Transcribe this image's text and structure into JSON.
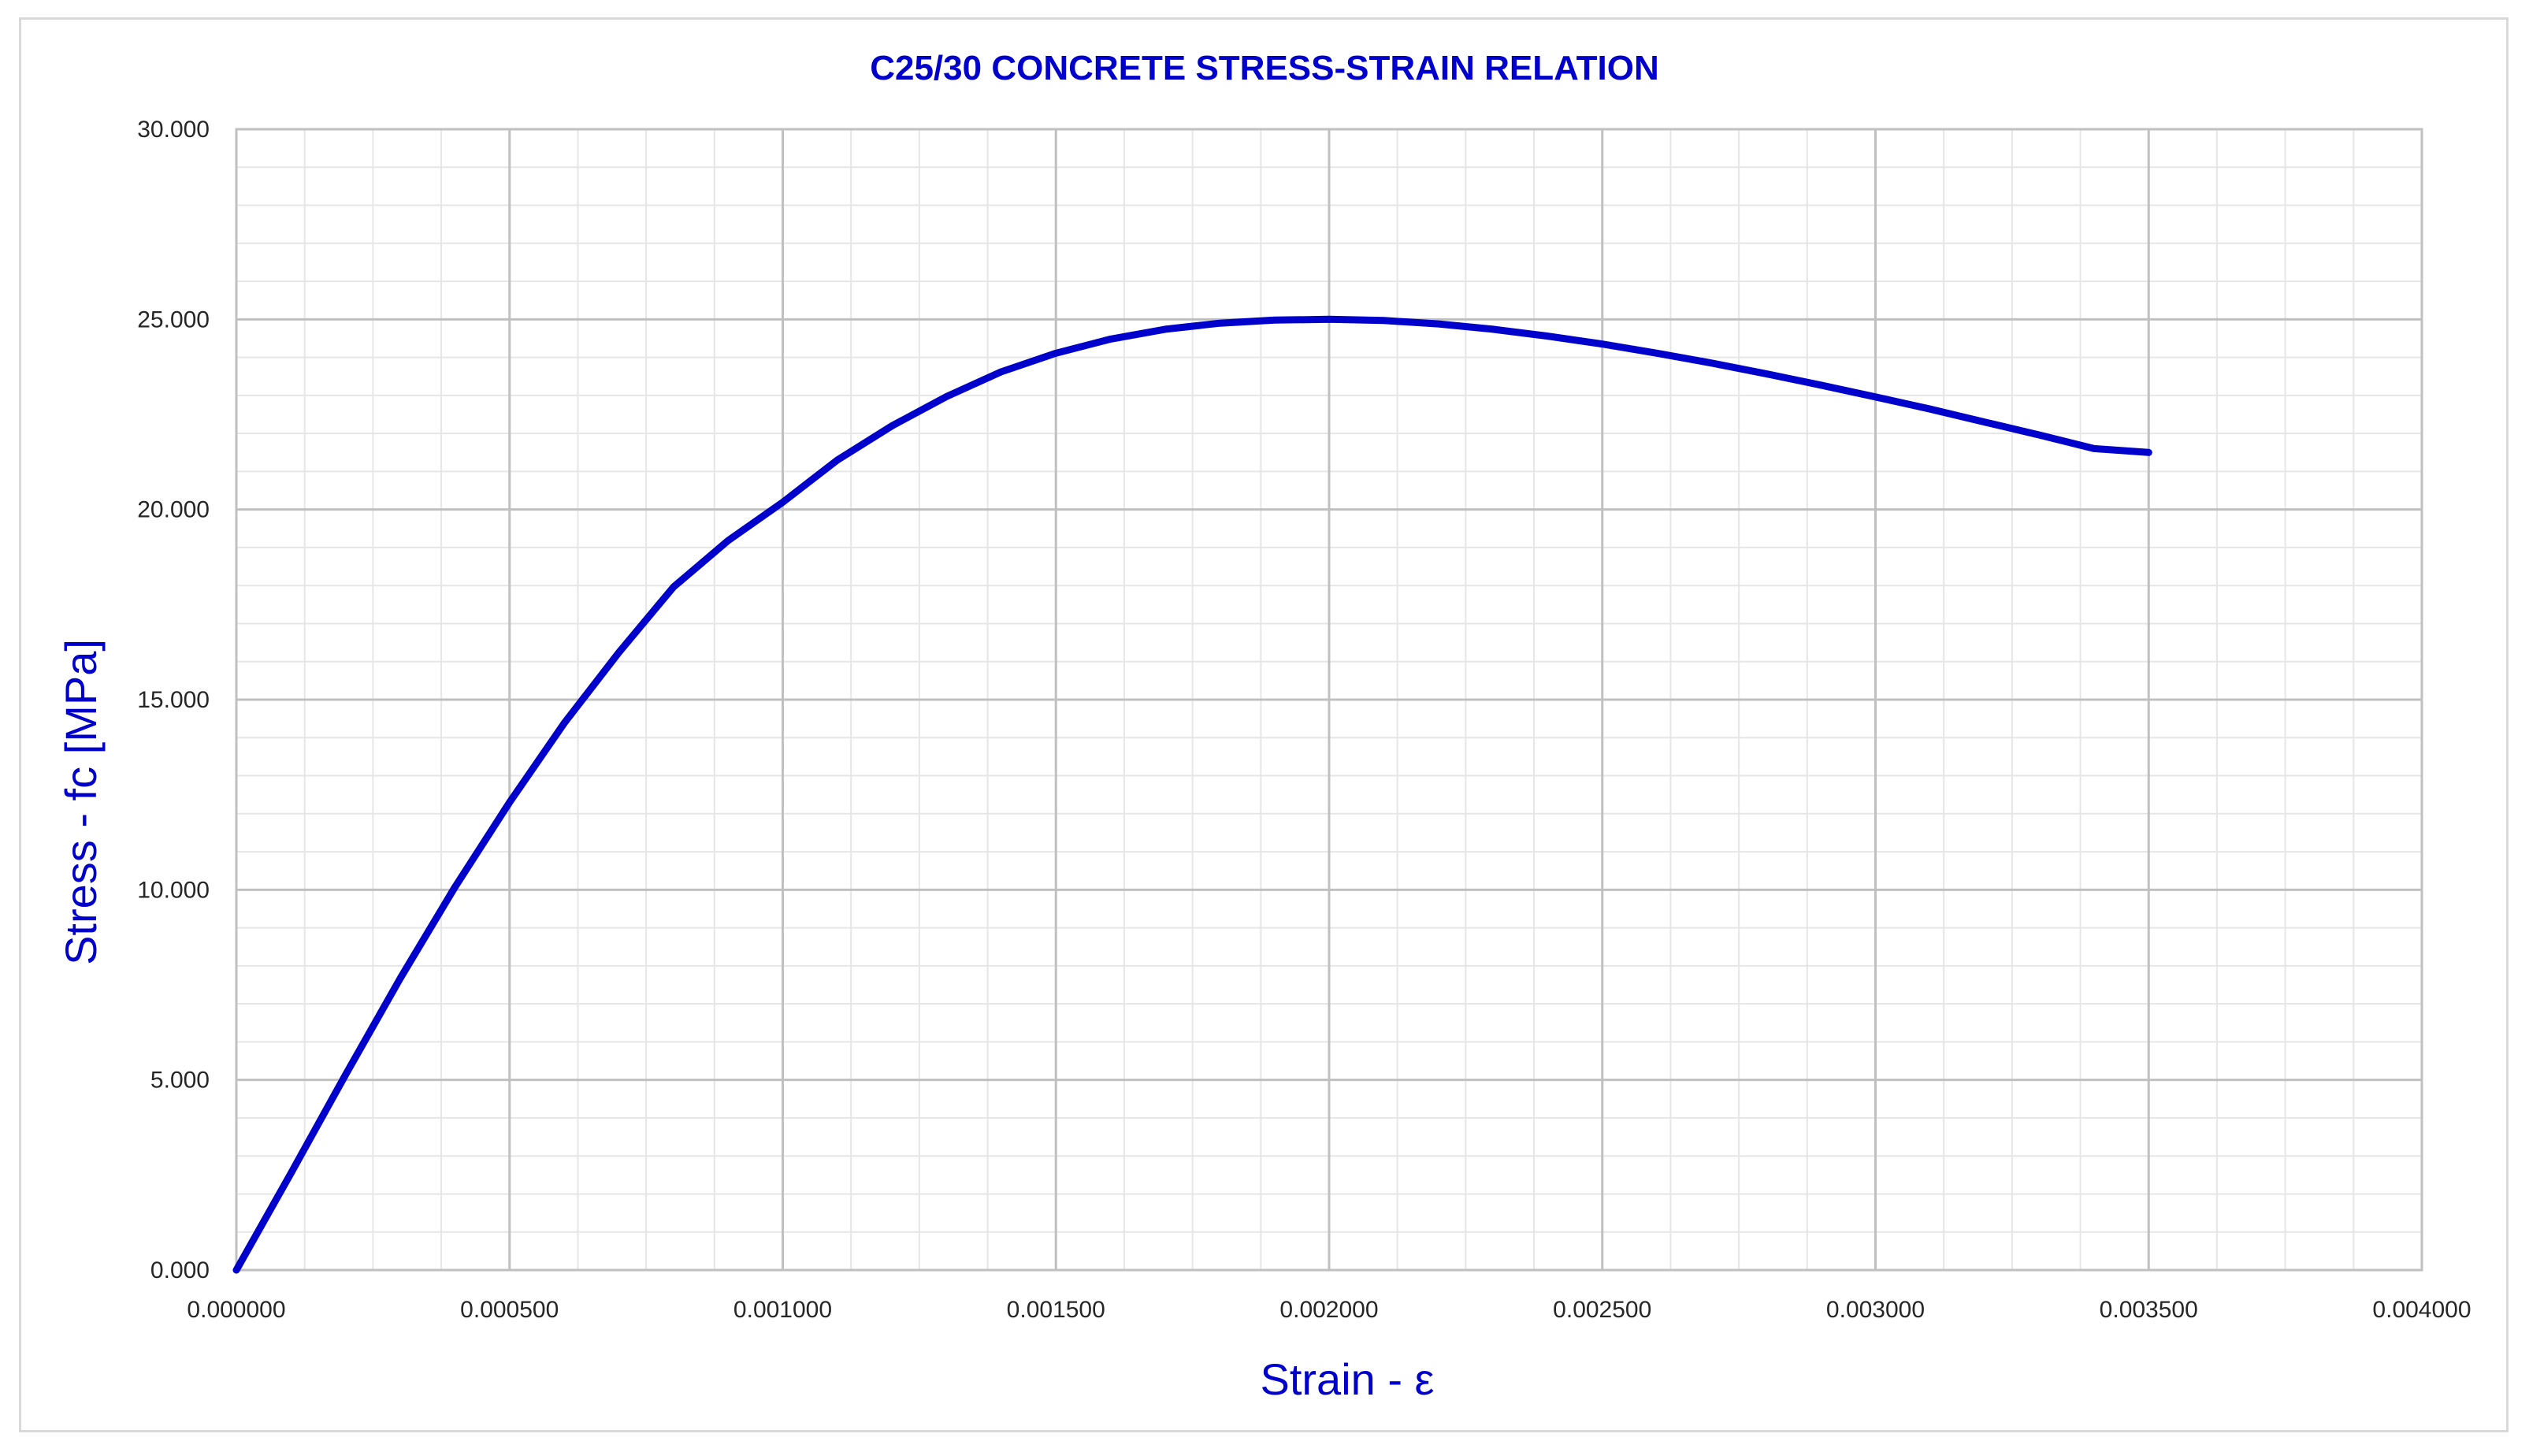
{
  "chart_data": {
    "type": "line",
    "title": "C25/30 CONCRETE STRESS-STRAIN RELATION",
    "xlabel": "Strain - ε",
    "ylabel": "Stress - fc [MPa]",
    "xlim": [
      0,
      0.004
    ],
    "ylim": [
      0,
      30
    ],
    "x_ticks": [
      "0.000000",
      "0.000500",
      "0.001000",
      "0.001500",
      "0.002000",
      "0.002500",
      "0.003000",
      "0.003500",
      "0.004000"
    ],
    "y_ticks": [
      "0.000",
      "5.000",
      "10.000",
      "15.000",
      "20.000",
      "25.000",
      "30.000"
    ],
    "grid": true,
    "legend": "none",
    "series": [
      {
        "color": "#0000cc",
        "x": [
          0,
          0.0001,
          0.0002,
          0.0003,
          0.0004,
          0.0005,
          0.0006,
          0.0007,
          0.0008,
          0.0009,
          0.001,
          0.0011,
          0.0012,
          0.0013,
          0.0014,
          0.0015,
          0.0016,
          0.0017,
          0.0018,
          0.0019,
          0.002,
          0.0021,
          0.0022,
          0.0023,
          0.0024,
          0.0025,
          0.0026,
          0.0027,
          0.0028,
          0.0029,
          0.003,
          0.0031,
          0.0032,
          0.0033,
          0.0034,
          0.0035
        ],
        "y": [
          0,
          2.55,
          5.14,
          7.67,
          10.07,
          12.3,
          14.38,
          16.24,
          17.96,
          19.18,
          20.19,
          21.3,
          22.2,
          22.97,
          23.62,
          24.11,
          24.48,
          24.74,
          24.9,
          24.98,
          25.0,
          24.97,
          24.88,
          24.74,
          24.56,
          24.35,
          24.11,
          23.85,
          23.57,
          23.27,
          22.96,
          22.64,
          22.3,
          21.96,
          21.6,
          21.5
        ]
      }
    ],
    "colors": {
      "title": "#0000cc",
      "axis_title": "#0000cc",
      "line": "#0000cc",
      "grid_major": "#c0c0c0",
      "grid_minor": "#e6e6e6"
    }
  }
}
